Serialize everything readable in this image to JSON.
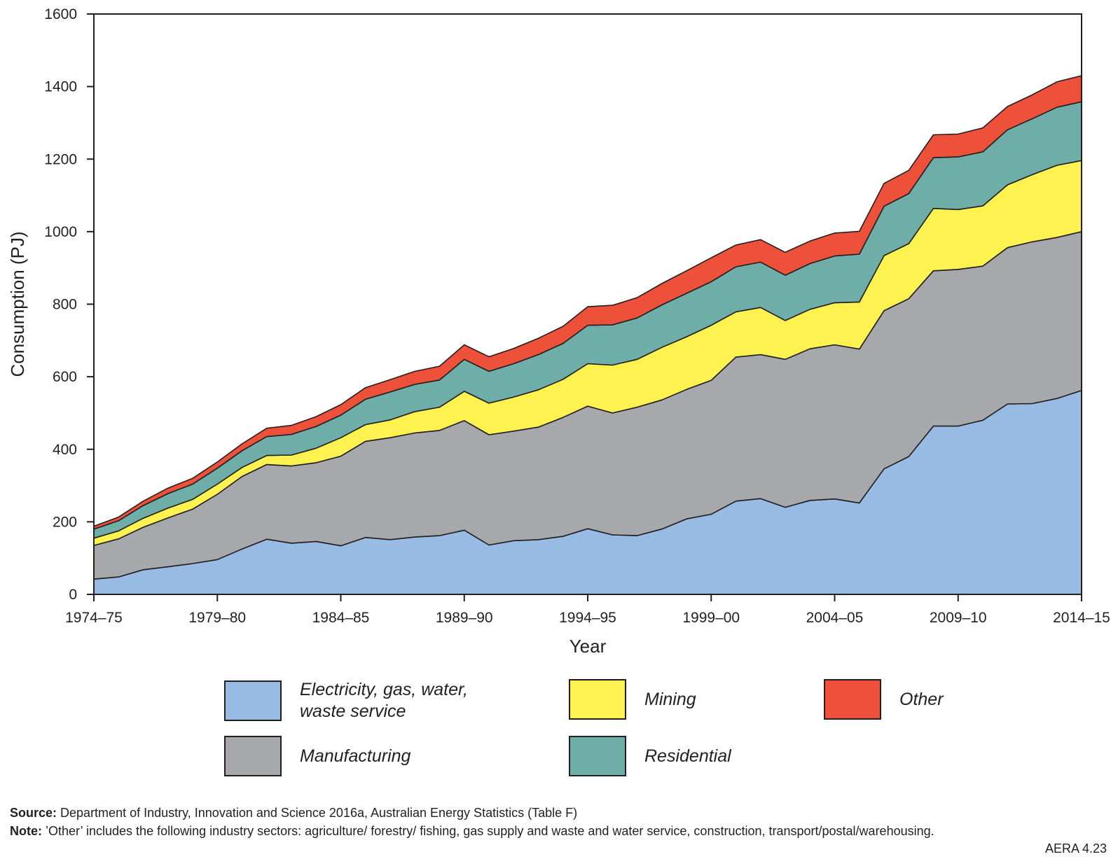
{
  "chart_data": {
    "type": "area",
    "stacked": true,
    "ylabel": "Consumption (PJ)",
    "xlabel": "Year",
    "ylim": [
      0,
      1600
    ],
    "yticks": [
      0,
      200,
      400,
      600,
      800,
      1000,
      1200,
      1400,
      1600
    ],
    "x_tick_labels": [
      "1974–75",
      "1979–80",
      "1984–85",
      "1989–90",
      "1994–95",
      "1999–00",
      "2004–05",
      "2009–10",
      "2014–15"
    ],
    "x_tick_index": [
      0,
      5,
      10,
      15,
      20,
      25,
      30,
      35,
      40
    ],
    "x_count": 41,
    "legend_position": "bottom",
    "series": [
      {
        "name": "Electricity, gas, water, waste service",
        "color": "#97bbe3",
        "values": [
          42,
          48,
          68,
          76,
          85,
          96,
          125,
          152,
          141,
          146,
          134,
          157,
          151,
          158,
          162,
          177,
          136,
          148,
          151,
          160,
          181,
          164,
          162,
          180,
          208,
          221,
          257,
          264,
          240,
          259,
          263,
          252,
          346,
          380,
          464,
          464,
          480,
          525,
          526,
          540,
          562
        ]
      },
      {
        "name": "Manufacturing",
        "color": "#a7a8ab",
        "values": [
          93,
          105,
          117,
          135,
          150,
          180,
          200,
          206,
          213,
          217,
          247,
          265,
          281,
          287,
          290,
          302,
          304,
          302,
          310,
          328,
          338,
          336,
          354,
          356,
          357,
          369,
          397,
          397,
          408,
          418,
          425,
          424,
          436,
          435,
          428,
          432,
          425,
          431,
          446,
          444,
          438
        ]
      },
      {
        "name": "Mining",
        "color": "#fef250",
        "values": [
          20,
          22,
          25,
          27,
          27,
          28,
          25,
          25,
          30,
          40,
          51,
          46,
          49,
          59,
          64,
          81,
          87,
          94,
          103,
          105,
          117,
          132,
          132,
          145,
          145,
          152,
          125,
          130,
          107,
          109,
          116,
          130,
          152,
          152,
          172,
          165,
          166,
          173,
          185,
          199,
          196
        ]
      },
      {
        "name": "Residential",
        "color": "#6eada8",
        "values": [
          25,
          28,
          35,
          40,
          42,
          44,
          46,
          52,
          57,
          60,
          62,
          70,
          77,
          75,
          75,
          88,
          88,
          92,
          97,
          99,
          106,
          111,
          114,
          117,
          120,
          120,
          124,
          125,
          125,
          126,
          129,
          132,
          136,
          138,
          140,
          145,
          149,
          152,
          154,
          160,
          162
        ]
      },
      {
        "name": "Other",
        "color": "#ee513a",
        "values": [
          8,
          10,
          12,
          15,
          16,
          17,
          19,
          23,
          25,
          27,
          29,
          32,
          34,
          36,
          38,
          40,
          40,
          42,
          45,
          47,
          51,
          54,
          56,
          59,
          62,
          66,
          60,
          62,
          63,
          62,
          63,
          63,
          63,
          64,
          63,
          63,
          66,
          64,
          66,
          70,
          72
        ]
      }
    ]
  },
  "legend": {
    "electricity_line1": "Electricity, gas, water,",
    "electricity_line2": "waste service",
    "manufacturing": "Manufacturing",
    "mining": "Mining",
    "residential": "Residential",
    "other": "Other",
    "colors": {
      "electricity": "#97bbe3",
      "manufacturing": "#a7a8ab",
      "mining": "#fef250",
      "residential": "#6eada8",
      "other": "#ee513a"
    }
  },
  "footer": {
    "source_label": "Source:",
    "source_text": " Department of Industry, Innovation and Science 2016a, Australian Energy Statistics (Table F)",
    "note_label": "Note:",
    "note_text": " ’Other’ includes the following industry sectors: agriculture/ forestry/ fishing, gas supply and waste and water service, construction, transport/postal/warehousing.",
    "figure_id": "AERA 4.23"
  }
}
